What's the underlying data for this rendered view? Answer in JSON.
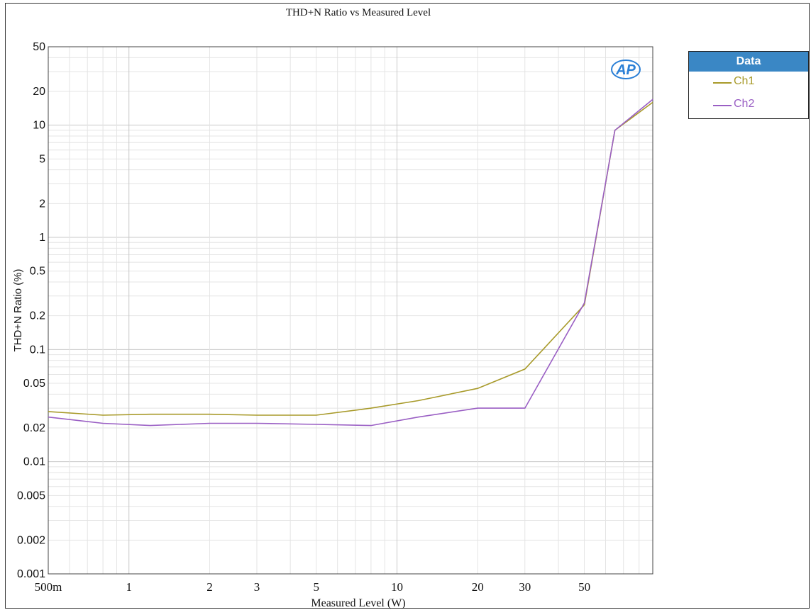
{
  "chart_data": {
    "type": "line",
    "title": "THD+N Ratio vs Measured Level",
    "xlabel": "Measured Level (W)",
    "ylabel": "THD+N Ratio (%)",
    "xscale": "log",
    "yscale": "log",
    "xlim": [
      0.5,
      90
    ],
    "ylim": [
      0.001,
      50
    ],
    "x_ticks": [
      {
        "value": 0.5,
        "label": "500m"
      },
      {
        "value": 1,
        "label": "1"
      },
      {
        "value": 2,
        "label": "2"
      },
      {
        "value": 3,
        "label": "3"
      },
      {
        "value": 5,
        "label": "5"
      },
      {
        "value": 10,
        "label": "10"
      },
      {
        "value": 20,
        "label": "20"
      },
      {
        "value": 30,
        "label": "30"
      },
      {
        "value": 50,
        "label": "50"
      }
    ],
    "y_ticks": [
      {
        "value": 50,
        "label": "50"
      },
      {
        "value": 20,
        "label": "20"
      },
      {
        "value": 10,
        "label": "10"
      },
      {
        "value": 5,
        "label": "5"
      },
      {
        "value": 2,
        "label": "2"
      },
      {
        "value": 1,
        "label": "1"
      },
      {
        "value": 0.5,
        "label": "0.5"
      },
      {
        "value": 0.2,
        "label": "0.2"
      },
      {
        "value": 0.1,
        "label": "0.1"
      },
      {
        "value": 0.05,
        "label": "0.05"
      },
      {
        "value": 0.02,
        "label": "0.02"
      },
      {
        "value": 0.01,
        "label": "0.01"
      },
      {
        "value": 0.005,
        "label": "0.005"
      },
      {
        "value": 0.002,
        "label": "0.002"
      },
      {
        "value": 0.001,
        "label": "0.001"
      }
    ],
    "grid": true,
    "legend_position": "right",
    "legend_title": "Data",
    "series": [
      {
        "name": "Ch1",
        "color": "#a89a2a",
        "x": [
          0.5,
          0.8,
          1.2,
          2,
          3,
          5,
          8,
          12,
          20,
          30,
          50,
          65,
          90
        ],
        "y": [
          0.028,
          0.026,
          0.0265,
          0.0265,
          0.026,
          0.026,
          0.03,
          0.035,
          0.045,
          0.067,
          0.25,
          9,
          16
        ]
      },
      {
        "name": "Ch2",
        "color": "#9a5fc4",
        "x": [
          0.5,
          0.8,
          1.2,
          2,
          3,
          5,
          8,
          12,
          20,
          30,
          50,
          65,
          90
        ],
        "y": [
          0.025,
          0.022,
          0.021,
          0.022,
          0.022,
          0.0215,
          0.021,
          0.025,
          0.03,
          0.03,
          0.26,
          9,
          17
        ]
      }
    ]
  },
  "logo": "AP"
}
